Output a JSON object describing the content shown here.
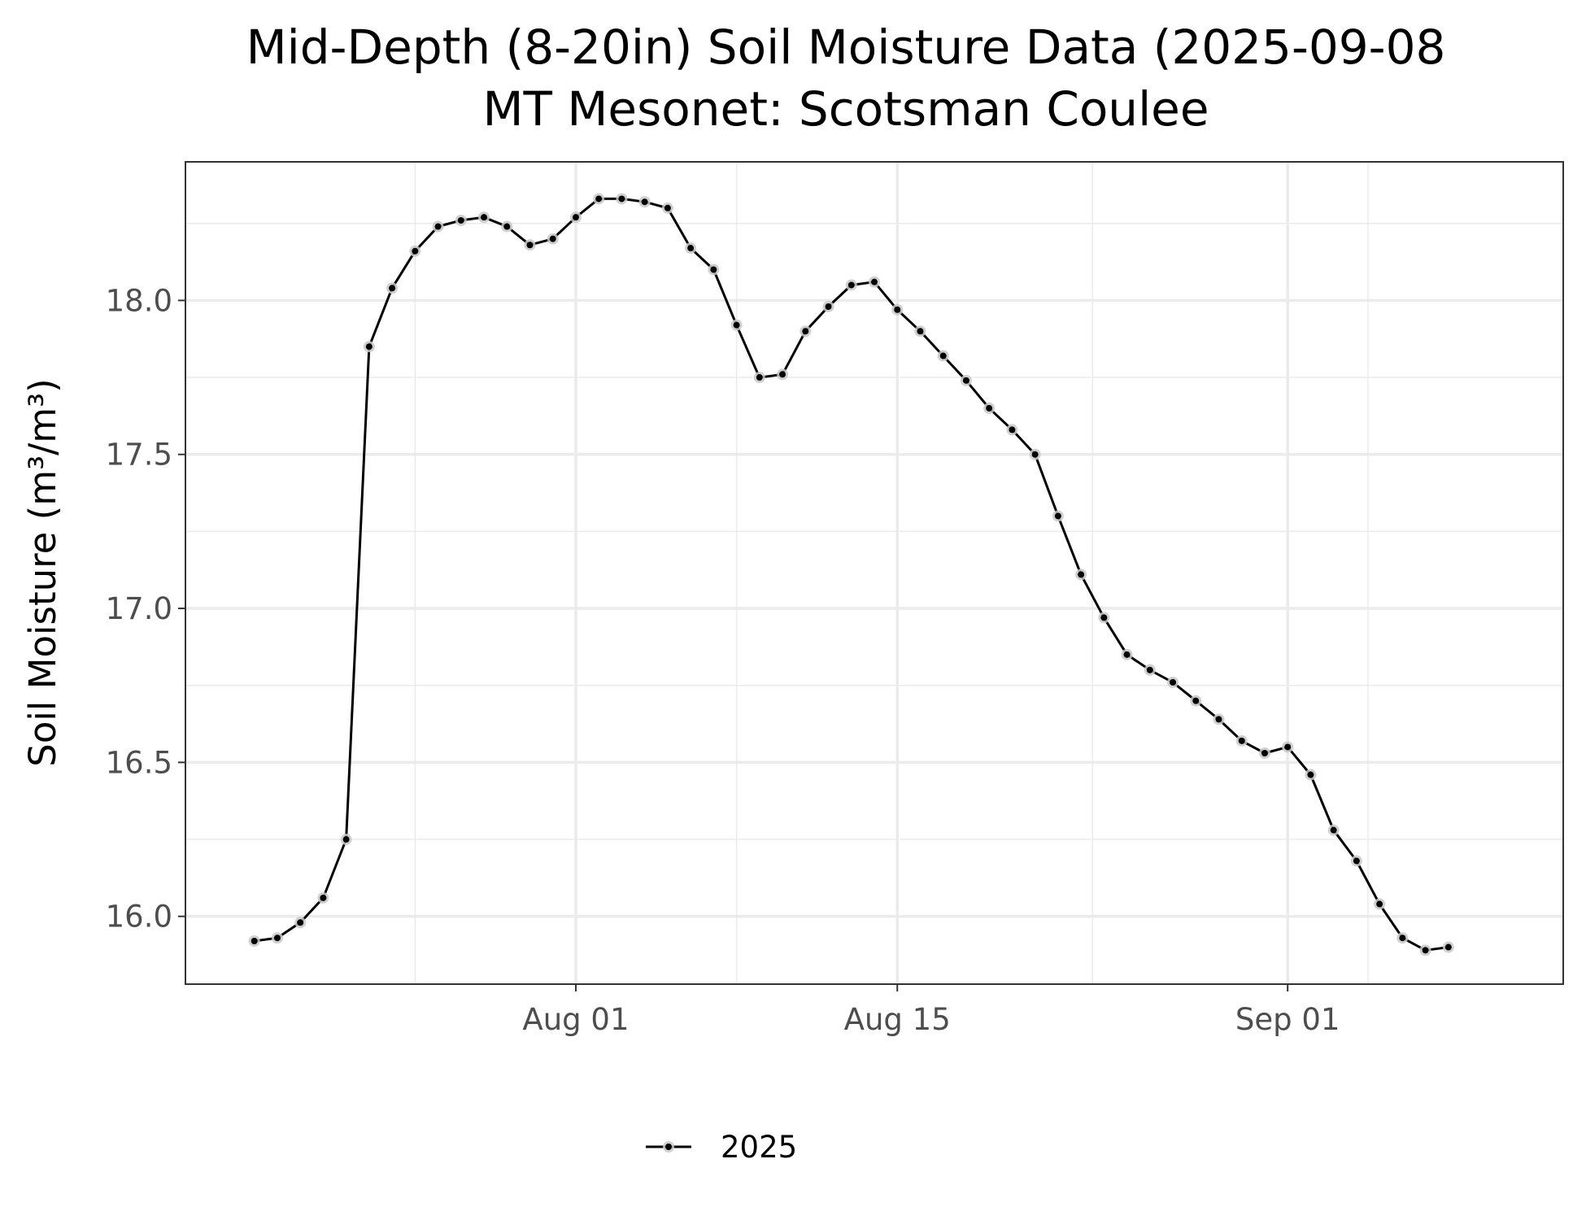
{
  "chart_data": {
    "type": "line",
    "title": "Mid-Depth (8-20in) Soil Moisture Data (2025-09-08",
    "subtitle": "MT Mesonet: Scotsman Coulee",
    "xlabel": "",
    "ylabel": "Soil Moisture (m³/m³)",
    "x_axis_type": "date",
    "xlim": [
      "2025-07-15",
      "2025-09-13"
    ],
    "x_ticks": [
      "2025-08-01",
      "2025-08-15",
      "2025-09-01"
    ],
    "x_tick_labels": [
      "Aug 01",
      "Aug 15",
      "Sep 01"
    ],
    "ylim": [
      15.78,
      18.45
    ],
    "y_ticks": [
      16.0,
      16.5,
      17.0,
      17.5,
      18.0
    ],
    "y_tick_labels": [
      "16.0",
      "16.5",
      "17.0",
      "17.5",
      "18.0"
    ],
    "grid": true,
    "legend": {
      "position": "bottom",
      "entries": [
        "2025"
      ]
    },
    "colors": {
      "line": "#000000",
      "point_halo": "#c8c8c8",
      "grid": "#ebebeb",
      "panel_border": "#333333"
    },
    "series": [
      {
        "name": "2025",
        "x": [
          "2025-07-18",
          "2025-07-19",
          "2025-07-20",
          "2025-07-21",
          "2025-07-22",
          "2025-07-23",
          "2025-07-24",
          "2025-07-25",
          "2025-07-26",
          "2025-07-27",
          "2025-07-28",
          "2025-07-29",
          "2025-07-30",
          "2025-07-31",
          "2025-08-01",
          "2025-08-02",
          "2025-08-03",
          "2025-08-04",
          "2025-08-05",
          "2025-08-06",
          "2025-08-07",
          "2025-08-08",
          "2025-08-09",
          "2025-08-10",
          "2025-08-11",
          "2025-08-12",
          "2025-08-13",
          "2025-08-14",
          "2025-08-15",
          "2025-08-16",
          "2025-08-17",
          "2025-08-18",
          "2025-08-19",
          "2025-08-20",
          "2025-08-21",
          "2025-08-22",
          "2025-08-23",
          "2025-08-24",
          "2025-08-25",
          "2025-08-26",
          "2025-08-27",
          "2025-08-28",
          "2025-08-29",
          "2025-08-30",
          "2025-08-31",
          "2025-09-01",
          "2025-09-02",
          "2025-09-03",
          "2025-09-04",
          "2025-09-05",
          "2025-09-06",
          "2025-09-07",
          "2025-09-08"
        ],
        "y": [
          15.92,
          15.93,
          15.98,
          16.06,
          16.25,
          17.85,
          18.04,
          18.16,
          18.24,
          18.26,
          18.27,
          18.24,
          18.18,
          18.2,
          18.27,
          18.33,
          18.33,
          18.32,
          18.3,
          18.17,
          18.1,
          17.92,
          17.75,
          17.76,
          17.9,
          17.98,
          18.05,
          18.06,
          17.97,
          17.9,
          17.82,
          17.74,
          17.65,
          17.58,
          17.5,
          17.3,
          17.11,
          16.97,
          16.85,
          16.8,
          16.76,
          16.7,
          16.64,
          16.57,
          16.53,
          16.55,
          16.46,
          16.28,
          16.18,
          16.04,
          15.93,
          15.89,
          15.9
        ]
      }
    ]
  }
}
